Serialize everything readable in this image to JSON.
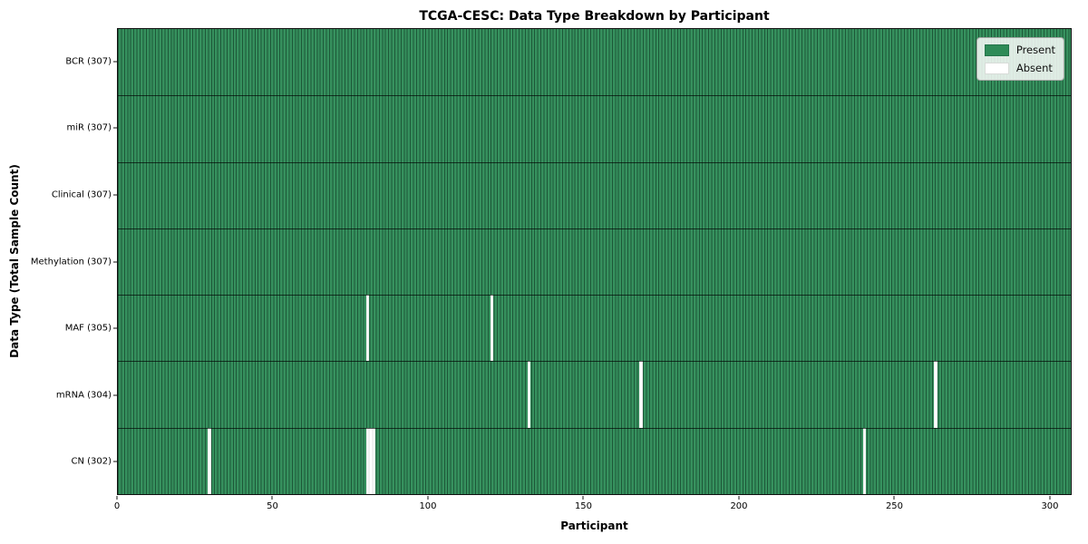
{
  "title": "TCGA-CESC: Data Type Breakdown by Participant",
  "chart_data": {
    "type": "heatmap",
    "title": "TCGA-CESC: Data Type Breakdown by Participant",
    "xlabel": "Participant",
    "ylabel": "Data Type (Total Sample Count)",
    "x_range": [
      0,
      307
    ],
    "n_participants": 307,
    "x_ticks": [
      0,
      50,
      100,
      150,
      200,
      250,
      300
    ],
    "grid": false,
    "legend_position": "upper right",
    "legend": [
      {
        "label": "Present",
        "color": "#2e8b57"
      },
      {
        "label": "Absent",
        "color": "#ffffff"
      }
    ],
    "rows": [
      {
        "label": "BCR (307)",
        "data_type": "BCR",
        "total_samples": 307,
        "absent_participants": []
      },
      {
        "label": "miR (307)",
        "data_type": "miR",
        "total_samples": 307,
        "absent_participants": []
      },
      {
        "label": "Clinical (307)",
        "data_type": "Clinical",
        "total_samples": 307,
        "absent_participants": []
      },
      {
        "label": "Methylation (307)",
        "data_type": "Methylation",
        "total_samples": 307,
        "absent_participants": []
      },
      {
        "label": "MAF (305)",
        "data_type": "MAF",
        "total_samples": 305,
        "absent_participants": [
          80,
          120
        ]
      },
      {
        "label": "mRNA (304)",
        "data_type": "mRNA",
        "total_samples": 304,
        "absent_participants": [
          132,
          168,
          263
        ]
      },
      {
        "label": "CN (302)",
        "data_type": "CN",
        "total_samples": 302,
        "absent_participants": [
          29,
          80,
          81,
          82,
          240
        ]
      }
    ]
  },
  "colors": {
    "present": "#2e8b57",
    "absent": "#ffffff",
    "cell_edge": "rgba(8,40,24,0.55)",
    "axis": "#111111",
    "background": "#ffffff"
  }
}
